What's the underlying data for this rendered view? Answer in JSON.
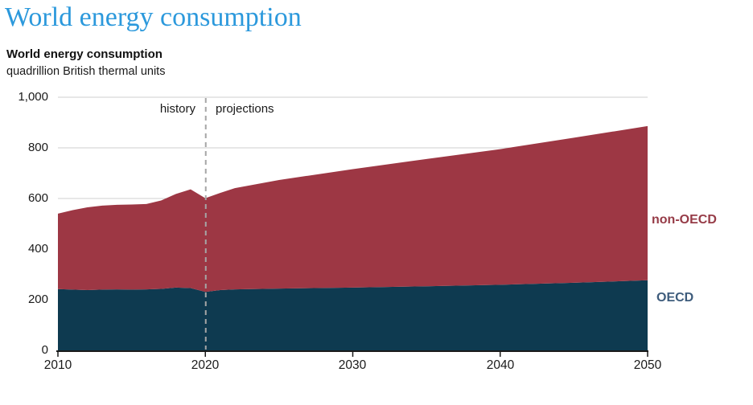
{
  "page": {
    "title": "World energy consumption"
  },
  "chart_header": {
    "title": "World energy consumption",
    "units": "quadrillion British thermal units"
  },
  "annotations": {
    "history": "history",
    "projections": "projections"
  },
  "chart_data": {
    "type": "area",
    "stacked": true,
    "title": "World energy consumption",
    "ylabel": "quadrillion British thermal units",
    "xlim": [
      2010,
      2050
    ],
    "ylim": [
      0,
      1000
    ],
    "grid": "horizontal",
    "divider_x": 2020,
    "x": [
      2010,
      2011,
      2012,
      2013,
      2014,
      2015,
      2016,
      2017,
      2018,
      2019,
      2020,
      2021,
      2022,
      2025,
      2030,
      2035,
      2040,
      2045,
      2050
    ],
    "series": [
      {
        "name": "OECD",
        "color": "#0e3a50",
        "label_color": "#3e5c7c",
        "values": [
          242,
          240,
          238,
          240,
          241,
          240,
          241,
          243,
          248,
          246,
          231,
          238,
          241,
          244,
          248,
          253,
          259,
          267,
          277
        ]
      },
      {
        "name": "non-OECD",
        "color": "#9d3744",
        "label_color": "#963b47",
        "values": [
          298,
          314,
          327,
          332,
          334,
          336,
          337,
          349,
          370,
          390,
          370,
          384,
          400,
          429,
          468,
          503,
          536,
          573,
          609
        ]
      }
    ],
    "totals": [
      540,
      554,
      565,
      572,
      575,
      576,
      578,
      592,
      618,
      636,
      601,
      622,
      641,
      673,
      716,
      756,
      795,
      840,
      886
    ],
    "xticks": [
      2010,
      2020,
      2030,
      2040,
      2050
    ],
    "xtick_labels": [
      "2010",
      "2020",
      "2030",
      "2040",
      "2050"
    ],
    "yticks": [
      0,
      200,
      400,
      600,
      800,
      1000
    ],
    "ytick_labels": [
      "0",
      "200",
      "400",
      "600",
      "800",
      "1,000"
    ],
    "colors": {
      "grid": "#cfcfcf",
      "axis": "#1a1a1a",
      "divider": "#a6a6a6",
      "page_title": "#2c99dc",
      "text": "#1a1a1a"
    }
  }
}
